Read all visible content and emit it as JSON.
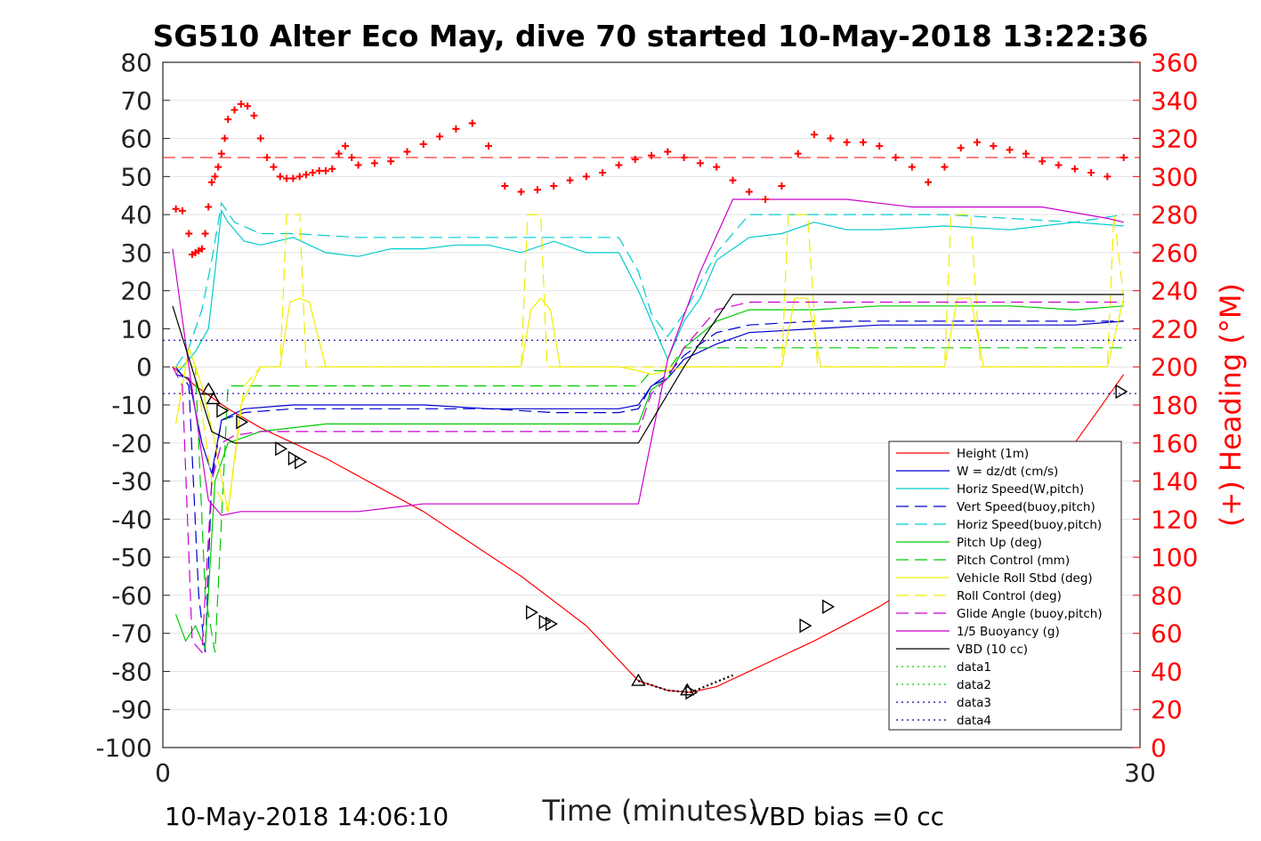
{
  "chart_data": {
    "type": "line",
    "title": "SG510 Alter Eco May, dive 70 started 10-May-2018 13:22:36",
    "xlabel": "Time (minutes)",
    "ylabel": "",
    "y2label": "(+) Heading (°M)",
    "xlim": [
      0,
      30
    ],
    "ylim": [
      -100,
      80
    ],
    "y2lim": [
      0,
      360
    ],
    "x_ticks": [
      "0",
      "30"
    ],
    "y_ticks": [
      "80",
      "70",
      "60",
      "50",
      "40",
      "30",
      "20",
      "10",
      "0",
      "-10",
      "-20",
      "-30",
      "-40",
      "-50",
      "-60",
      "-70",
      "-80",
      "-90",
      "-100"
    ],
    "y2_ticks": [
      "360",
      "340",
      "320",
      "300",
      "280",
      "260",
      "240",
      "220",
      "200",
      "180",
      "160",
      "140",
      "120",
      "100",
      "80",
      "60",
      "40",
      "20",
      "0"
    ],
    "grid": true,
    "legend_position": "lower-right",
    "footer_left": "10-May-2018 14:06:10",
    "footer_right": "VBD bias =0 cc",
    "colors": {
      "height": "#ff0000",
      "w": "#0000cc",
      "horiz_w": "#00cccc",
      "vert_buoy": "#0000cc",
      "horiz_buoy": "#00cccc",
      "pitch": "#00cc00",
      "pitch_ctrl": "#00cc00",
      "roll": "#eeee00",
      "roll_ctrl": "#eeee00",
      "glide": "#cc00cc",
      "buoy": "#cc00cc",
      "vbd": "#000000",
      "data1": "#00cc00",
      "data2": "#00cc00",
      "data3": "#0000aa",
      "data4": "#0000aa",
      "heading": "#ff0000"
    },
    "series": [
      {
        "name": "Height (1m)",
        "key": "height",
        "style": "solid",
        "x": [
          0.3,
          1,
          2,
          3,
          5,
          8,
          11,
          13,
          14.6,
          15.5,
          16.2,
          17,
          18,
          20,
          22,
          24,
          26,
          28,
          29.5
        ],
        "y": [
          0,
          -5,
          -11,
          -16,
          -24,
          -38,
          -55,
          -68,
          -82.5,
          -85,
          -85.5,
          -84,
          -80,
          -72,
          -63,
          -52,
          -38,
          -20,
          -2
        ]
      },
      {
        "name": "W = dz/dt (cm/s)",
        "key": "w",
        "style": "solid",
        "x": [
          0.4,
          0.8,
          1.2,
          1.5,
          1.8,
          2.5,
          4,
          6,
          8,
          10,
          12,
          13,
          14,
          14.6,
          15,
          15.5,
          16,
          17,
          18,
          20,
          22,
          24,
          26,
          28,
          29.5
        ],
        "y": [
          -2,
          -3,
          -20,
          -28,
          -14,
          -11,
          -10,
          -10,
          -10,
          -11,
          -11,
          -11,
          -11,
          -10,
          -5,
          -3,
          2,
          6,
          9,
          10,
          11,
          11,
          11,
          11,
          12
        ]
      },
      {
        "name": "Horiz Speed(W,pitch)",
        "key": "horiz_w",
        "style": "solid",
        "x": [
          0.4,
          1,
          1.4,
          1.6,
          1.8,
          2,
          2.5,
          3,
          4,
          5,
          6,
          7,
          8,
          9,
          10,
          11,
          12,
          13,
          14,
          14.6,
          15,
          15.5,
          16,
          16.5,
          17,
          18,
          19,
          20,
          21,
          22,
          24,
          26,
          28,
          29.5
        ],
        "y": [
          -2,
          4,
          10,
          25,
          41,
          38,
          33,
          32,
          34,
          30,
          29,
          31,
          31,
          32,
          32,
          30,
          33,
          30,
          30,
          20,
          12,
          2,
          12,
          18,
          28,
          34,
          35,
          38,
          36,
          36,
          37,
          36,
          38,
          37
        ]
      },
      {
        "name": "Vert Speed(buoy,pitch)",
        "key": "vert_buoy",
        "style": "dash",
        "x": [
          0.4,
          0.8,
          1.1,
          1.3,
          1.5,
          1.8,
          2.5,
          4,
          6,
          8,
          10,
          12,
          14,
          14.6,
          15,
          15.5,
          16,
          17,
          18,
          20,
          22,
          24,
          26,
          28,
          29.5
        ],
        "y": [
          0,
          -5,
          -60,
          -75,
          -30,
          -14,
          -12,
          -11,
          -11,
          -11,
          -11,
          -12,
          -12,
          -11,
          -5,
          -2,
          3,
          9,
          11,
          12,
          12,
          12,
          12,
          12,
          12
        ]
      },
      {
        "name": "Horiz Speed(buoy,pitch)",
        "key": "horiz_buoy",
        "style": "dash",
        "x": [
          0.4,
          0.8,
          1.2,
          1.5,
          1.8,
          2.2,
          3,
          4,
          6,
          8,
          10,
          12,
          14,
          14.6,
          15,
          15.5,
          16,
          17,
          18,
          20,
          22,
          24,
          26,
          28,
          29.5
        ],
        "y": [
          0,
          5,
          15,
          28,
          43,
          38,
          35,
          35,
          34,
          34,
          34,
          34,
          34,
          25,
          14,
          8,
          14,
          30,
          40,
          40,
          40,
          40,
          39,
          38,
          40
        ]
      },
      {
        "name": "Pitch Up (deg)",
        "key": "pitch",
        "style": "solid",
        "x": [
          0.4,
          0.7,
          1,
          1.3,
          1.6,
          2,
          3,
          5,
          7,
          9,
          11,
          13,
          14.6,
          15,
          15.5,
          16,
          17,
          18,
          20,
          22,
          24,
          26,
          28,
          29.5
        ],
        "y": [
          -65,
          -72,
          -68,
          -74,
          -30,
          -20,
          -17,
          -15,
          -15,
          -15,
          -15,
          -15,
          -15,
          -6,
          -3,
          5,
          12,
          15,
          15,
          16,
          16,
          16,
          15,
          16
        ]
      },
      {
        "name": "Pitch Control (mm)",
        "key": "pitch_ctrl",
        "style": "dash",
        "x": [
          0.3,
          1,
          1.3,
          1.6,
          2,
          4,
          8,
          12,
          14.6,
          15,
          15.5,
          16,
          17,
          20,
          24,
          28,
          29.5
        ],
        "y": [
          0,
          0,
          -60,
          -75,
          -5,
          -5,
          -5,
          -5,
          -5,
          -1,
          -1,
          5,
          5,
          5,
          5,
          5,
          5
        ]
      },
      {
        "name": "Vehicle Roll Stbd (deg)",
        "key": "roll",
        "style": "solid",
        "x": [
          0.4,
          0.8,
          1.2,
          1.6,
          2,
          2.4,
          3,
          3.6,
          3.9,
          4.2,
          4.5,
          5,
          8,
          11,
          11.3,
          11.6,
          11.9,
          12.2,
          14,
          14.6,
          15,
          15.5,
          16,
          17,
          19,
          19.4,
          19.8,
          20.2,
          20.6,
          22,
          24,
          24.4,
          24.8,
          25.2,
          25.6,
          28,
          29,
          29.5
        ],
        "y": [
          -15,
          5,
          -5,
          -20,
          -38,
          -10,
          0,
          0,
          17,
          18,
          17,
          0,
          0,
          0,
          15,
          18,
          15,
          0,
          0,
          -1,
          -2,
          -1,
          0,
          0,
          0,
          18,
          18,
          0,
          0,
          0,
          0,
          18,
          18,
          0,
          0,
          0,
          0,
          18
        ]
      },
      {
        "name": "Roll Control (deg)",
        "key": "roll_ctrl",
        "style": "dash",
        "x": [
          0.3,
          1,
          1.5,
          2,
          2.5,
          3,
          3.6,
          3.8,
          4.2,
          4.4,
          5,
          11,
          11.2,
          11.6,
          11.8,
          12.4,
          15,
          16,
          19,
          19.2,
          19.8,
          20.1,
          24,
          24.2,
          24.8,
          25.1,
          29,
          29.2,
          29.5
        ],
        "y": [
          0,
          0,
          -30,
          -38,
          -5,
          0,
          0,
          40,
          40,
          0,
          0,
          0,
          40,
          40,
          0,
          0,
          0,
          0,
          0,
          40,
          40,
          0,
          0,
          40,
          40,
          0,
          0,
          40,
          18
        ]
      },
      {
        "name": "Glide Angle (buoy,pitch)",
        "key": "glide",
        "style": "dash",
        "x": [
          0.3,
          0.6,
          0.9,
          1.2,
          1.5,
          1.8,
          2.2,
          3,
          5,
          8,
          11,
          13,
          14.6,
          15,
          15.5,
          16,
          17,
          18,
          20,
          22,
          24,
          26,
          28,
          29.5
        ],
        "y": [
          0,
          -5,
          -72,
          -75,
          -30,
          -20,
          -18,
          -17,
          -17,
          -17,
          -17,
          -17,
          -17,
          -7,
          -3,
          5,
          15,
          17,
          17,
          17,
          17,
          17,
          17,
          17
        ]
      },
      {
        "name": "1/5 Buoyancy (g)",
        "key": "buoy",
        "style": "solid",
        "x": [
          0.3,
          0.8,
          1.4,
          1.8,
          2.4,
          4,
          6,
          7,
          8,
          10,
          12,
          14,
          14.6,
          15.5,
          16.5,
          17.5,
          19,
          21,
          23,
          25,
          27,
          29,
          29.5
        ],
        "y": [
          31,
          0,
          -35,
          -39,
          -38,
          -38,
          -38,
          -37,
          -36,
          -36,
          -36,
          -36,
          -36,
          2,
          25,
          44,
          44,
          44,
          42,
          42,
          42,
          39,
          38
        ]
      },
      {
        "name": "VBD (10 cc)",
        "key": "vbd",
        "style": "solid",
        "x": [
          0.3,
          1.5,
          2.2,
          3,
          8,
          12,
          14.6,
          16,
          17.5,
          20,
          24,
          28,
          29.5
        ],
        "y": [
          16,
          -17,
          -20,
          -20,
          -20,
          -20,
          -20,
          0,
          19,
          19,
          19,
          19,
          19
        ]
      },
      {
        "name": "data1",
        "key": "data1",
        "style": "dot",
        "x": [],
        "y": []
      },
      {
        "name": "data2",
        "key": "data2",
        "style": "dot",
        "x": [],
        "y": []
      },
      {
        "name": "data3",
        "key": "data3",
        "style": "dot",
        "x": [
          0,
          30
        ],
        "y": [
          7,
          7
        ]
      },
      {
        "name": "data4",
        "key": "data4",
        "style": "dot",
        "x": [
          0,
          30
        ],
        "y": [
          -7,
          -7
        ]
      }
    ],
    "dotted_segment": {
      "key": "vbd",
      "x": [
        14.6,
        15.5,
        16.2,
        17.5
      ],
      "y": [
        -82.5,
        -85,
        -85.5,
        -81
      ]
    },
    "heading_reference": {
      "key": "heading",
      "style": "dash",
      "y2": 310
    },
    "heading": {
      "x": [
        0.4,
        0.6,
        0.8,
        0.9,
        1,
        1.1,
        1.2,
        1.3,
        1.4,
        1.5,
        1.6,
        1.7,
        1.8,
        1.9,
        2,
        2.2,
        2.4,
        2.6,
        2.8,
        3,
        3.2,
        3.4,
        3.6,
        3.8,
        4,
        4.2,
        4.4,
        4.6,
        4.8,
        5,
        5.2,
        5.4,
        5.6,
        5.8,
        6,
        6.5,
        7,
        7.5,
        8,
        8.5,
        9,
        9.5,
        10,
        10.5,
        11,
        11.5,
        12,
        12.5,
        13,
        13.5,
        14,
        14.5,
        15,
        15.5,
        16,
        16.5,
        17,
        17.5,
        18,
        18.5,
        19,
        19.5,
        20,
        20.5,
        21,
        21.5,
        22,
        22.5,
        23,
        23.5,
        24,
        24.5,
        25,
        25.5,
        26,
        26.5,
        27,
        27.5,
        28,
        28.5,
        29,
        29.5
      ],
      "y2": [
        283,
        282,
        270,
        259,
        260,
        261,
        262,
        270,
        284,
        297,
        300,
        305,
        312,
        320,
        330,
        335,
        338,
        337,
        332,
        320,
        310,
        305,
        300,
        299,
        299,
        300,
        301,
        302,
        303,
        303,
        304,
        312,
        316,
        310,
        306,
        307,
        308,
        313,
        317,
        321,
        325,
        328,
        316,
        295,
        292,
        293,
        295,
        298,
        300,
        302,
        306,
        309,
        311,
        313,
        310,
        307,
        305,
        298,
        292,
        288,
        295,
        312,
        322,
        320,
        318,
        318,
        316,
        310,
        305,
        297,
        305,
        315,
        318,
        316,
        314,
        312,
        308,
        306,
        304,
        302,
        300,
        310
      ]
    },
    "markers": [
      {
        "x": 1.4,
        "y": -6,
        "dir": "up"
      },
      {
        "x": 1.55,
        "y": -8.5,
        "dir": "up"
      },
      {
        "x": 1.8,
        "y": -11.5,
        "dir": "right"
      },
      {
        "x": 2.4,
        "y": -14.5,
        "dir": "right"
      },
      {
        "x": 3.6,
        "y": -21.5,
        "dir": "right"
      },
      {
        "x": 4.0,
        "y": -24,
        "dir": "right"
      },
      {
        "x": 4.2,
        "y": -25,
        "dir": "right"
      },
      {
        "x": 11.3,
        "y": -64.5,
        "dir": "right"
      },
      {
        "x": 11.7,
        "y": -67,
        "dir": "right"
      },
      {
        "x": 11.9,
        "y": -67.5,
        "dir": "right"
      },
      {
        "x": 14.6,
        "y": -82.5,
        "dir": "up"
      },
      {
        "x": 16.2,
        "y": -85.5,
        "dir": "right"
      },
      {
        "x": 16.1,
        "y": -85,
        "dir": "up"
      },
      {
        "x": 19.7,
        "y": -68,
        "dir": "right"
      },
      {
        "x": 20.4,
        "y": -63,
        "dir": "right"
      },
      {
        "x": 29.4,
        "y": -6.5,
        "dir": "right"
      }
    ]
  }
}
